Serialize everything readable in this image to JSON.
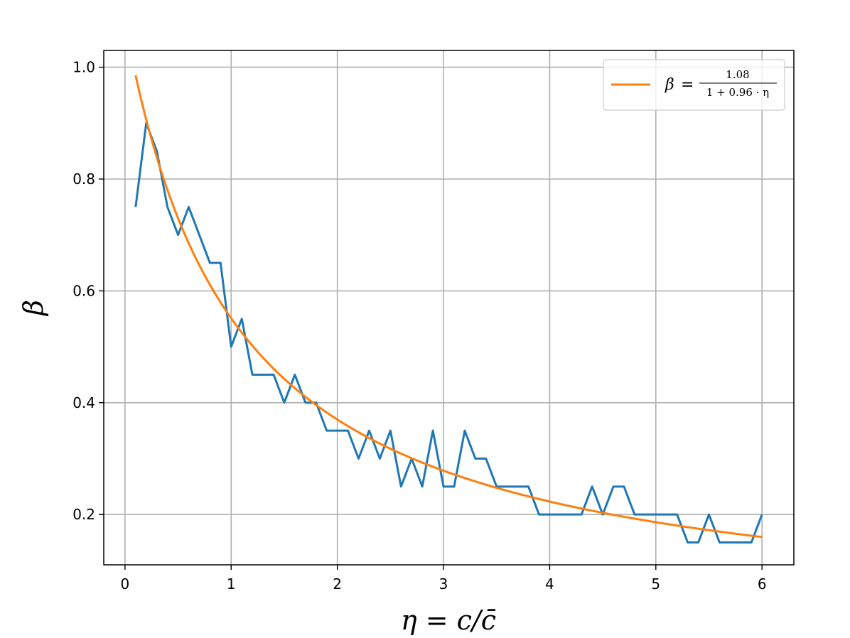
{
  "chart_data": {
    "type": "line",
    "xlabel": "η = c/c̄",
    "ylabel": "β",
    "xlim": [
      -0.2,
      6.3
    ],
    "ylim": [
      0.11,
      1.03
    ],
    "x_ticks": [
      0,
      1,
      2,
      3,
      4,
      5,
      6
    ],
    "y_ticks": [
      0.2,
      0.4,
      0.6,
      0.8,
      1.0
    ],
    "x_tick_labels": [
      "0",
      "1",
      "2",
      "3",
      "4",
      "5",
      "6"
    ],
    "y_tick_labels": [
      "0.2",
      "0.4",
      "0.6",
      "0.8",
      "1.0"
    ],
    "grid": true,
    "legend_position": "top-right",
    "series": [
      {
        "kind": "data",
        "color": "#1f77b4",
        "x": [
          0.1,
          0.2,
          0.3,
          0.4,
          0.5,
          0.6,
          0.7,
          0.8,
          0.9,
          1.0,
          1.1,
          1.2,
          1.3,
          1.4,
          1.5,
          1.6,
          1.7,
          1.8,
          1.9,
          2.0,
          2.1,
          2.2,
          2.3,
          2.4,
          2.5,
          2.6,
          2.7,
          2.8,
          2.9,
          3.0,
          3.1,
          3.2,
          3.3,
          3.4,
          3.5,
          3.6,
          3.7,
          3.8,
          3.9,
          4.0,
          4.1,
          4.2,
          4.3,
          4.4,
          4.5,
          4.6,
          4.7,
          4.8,
          4.9,
          5.0,
          5.1,
          5.2,
          5.3,
          5.4,
          5.5,
          5.6,
          5.7,
          5.8,
          5.9,
          6.0
        ],
        "y": [
          0.75,
          0.9,
          0.85,
          0.75,
          0.7,
          0.75,
          0.7,
          0.65,
          0.65,
          0.5,
          0.55,
          0.45,
          0.45,
          0.45,
          0.4,
          0.45,
          0.4,
          0.4,
          0.35,
          0.35,
          0.35,
          0.3,
          0.35,
          0.3,
          0.35,
          0.25,
          0.3,
          0.25,
          0.35,
          0.25,
          0.25,
          0.35,
          0.3,
          0.3,
          0.25,
          0.25,
          0.25,
          0.25,
          0.2,
          0.2,
          0.2,
          0.2,
          0.2,
          0.25,
          0.2,
          0.25,
          0.25,
          0.2,
          0.2,
          0.2,
          0.2,
          0.2,
          0.15,
          0.15,
          0.2,
          0.15,
          0.15,
          0.15,
          0.15,
          0.2
        ]
      },
      {
        "kind": "fit",
        "color": "#ff7f0e",
        "name": "β = 1.08 / (1 + 0.96 · η)",
        "formula": {
          "numerator": 1.08,
          "a": 1,
          "b": 0.96
        },
        "x_range": [
          0.1,
          6.0
        ]
      }
    ],
    "legend": {
      "lhs": "β",
      "equals": "=",
      "numerator": "1.08",
      "denominator": "1 + 0.96 · η"
    }
  }
}
